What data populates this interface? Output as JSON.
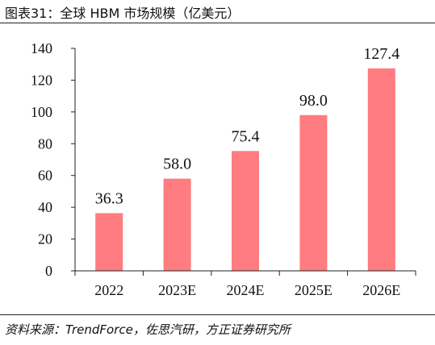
{
  "figure": {
    "title": "图表31：全球 HBM 市场规模（亿美元）",
    "source": "资料来源：TrendForce，佐思汽研，方正证券研究所"
  },
  "colors": {
    "bar": "#ff7c80",
    "axis": "#222222",
    "text": "#111111"
  },
  "chart_data": {
    "type": "bar",
    "title": "图表31：全球 HBM 市场规模（亿美元）",
    "categories": [
      "2022",
      "2023E",
      "2024E",
      "2025E",
      "2026E"
    ],
    "values": [
      36.3,
      58.0,
      75.4,
      98.0,
      127.4
    ],
    "value_labels": [
      "36.3",
      "58.0",
      "75.4",
      "98.0",
      "127.4"
    ],
    "ylim": [
      0,
      140
    ],
    "yticks": [
      0,
      20,
      40,
      60,
      80,
      100,
      120,
      140
    ],
    "grid": false,
    "legend": "none"
  }
}
